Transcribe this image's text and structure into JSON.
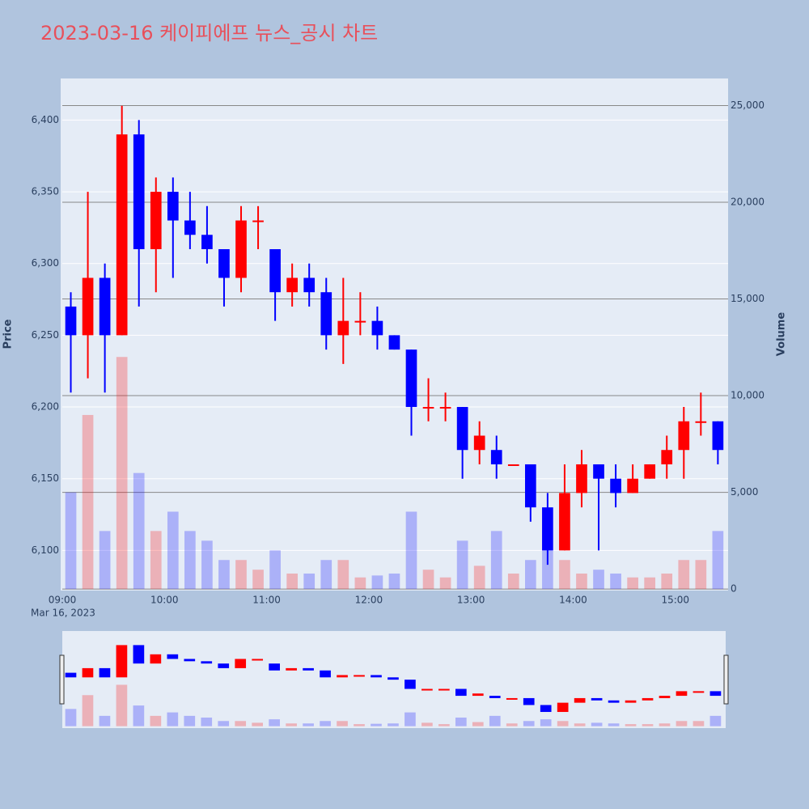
{
  "chart_data": {
    "type": "candlestick",
    "title": "2023-03-16 케이피에프 뉴스_공시 차트",
    "y_label": "Price",
    "y2_label": "Volume",
    "x_date_label": "Mar 16, 2023",
    "increasing_color": "#ff0000",
    "decreasing_color": "#0000ff",
    "x": [
      "09:00",
      "09:10",
      "09:20",
      "09:30",
      "09:40",
      "09:50",
      "10:00",
      "10:10",
      "10:20",
      "10:30",
      "10:40",
      "10:50",
      "11:00",
      "11:10",
      "11:20",
      "11:30",
      "11:40",
      "11:50",
      "12:00",
      "12:10",
      "12:20",
      "12:30",
      "12:40",
      "12:50",
      "13:00",
      "13:10",
      "13:20",
      "13:30",
      "13:40",
      "13:50",
      "14:00",
      "14:10",
      "14:20",
      "14:30",
      "14:40",
      "14:50",
      "15:00",
      "15:10",
      "15:20"
    ],
    "open": [
      6270,
      6250,
      6290,
      6250,
      6390,
      6310,
      6350,
      6330,
      6320,
      6310,
      6290,
      6330,
      6310,
      6280,
      6290,
      6280,
      6250,
      6260,
      6260,
      6250,
      6240,
      6200,
      6200,
      6200,
      6170,
      6170,
      6160,
      6160,
      6130,
      6100,
      6140,
      6160,
      6150,
      6140,
      6150,
      6160,
      6170,
      6190,
      6190
    ],
    "high": [
      6280,
      6350,
      6300,
      6410,
      6400,
      6360,
      6360,
      6350,
      6340,
      6310,
      6340,
      6340,
      6310,
      6300,
      6300,
      6290,
      6290,
      6280,
      6270,
      6250,
      6240,
      6220,
      6210,
      6200,
      6190,
      6180,
      6160,
      6160,
      6140,
      6160,
      6170,
      6160,
      6160,
      6160,
      6160,
      6180,
      6200,
      6210,
      6190
    ],
    "low": [
      6210,
      6220,
      6210,
      6250,
      6270,
      6280,
      6290,
      6310,
      6300,
      6270,
      6280,
      6310,
      6260,
      6270,
      6270,
      6240,
      6230,
      6250,
      6240,
      6240,
      6180,
      6190,
      6190,
      6150,
      6160,
      6150,
      6160,
      6120,
      6090,
      6100,
      6130,
      6100,
      6130,
      6140,
      6150,
      6150,
      6150,
      6180,
      6160
    ],
    "close": [
      6250,
      6290,
      6250,
      6390,
      6310,
      6350,
      6330,
      6320,
      6310,
      6290,
      6330,
      6330,
      6280,
      6290,
      6280,
      6250,
      6260,
      6260,
      6250,
      6240,
      6200,
      6200,
      6200,
      6170,
      6180,
      6160,
      6160,
      6130,
      6100,
      6140,
      6160,
      6150,
      6140,
      6150,
      6160,
      6170,
      6190,
      6190,
      6170
    ],
    "volume": [
      5000,
      9000,
      3000,
      12000,
      6000,
      3000,
      4000,
      3000,
      2500,
      1500,
      1500,
      1000,
      2000,
      800,
      800,
      1500,
      1500,
      600,
      700,
      800,
      4000,
      1000,
      600,
      2500,
      1200,
      3000,
      800,
      1500,
      2000,
      1500,
      800,
      1000,
      800,
      600,
      600,
      800,
      1500,
      1500,
      3000
    ],
    "xlim": [
      "09:00",
      "15:31"
    ],
    "xticks": [
      "09:00",
      "10:00",
      "11:00",
      "12:00",
      "13:00",
      "14:00",
      "15:00"
    ],
    "ylim": [
      6072,
      6429
    ],
    "yticks": [
      {
        "value": 6100,
        "label": "6,100"
      },
      {
        "value": 6150,
        "label": "6,150"
      },
      {
        "value": 6200,
        "label": "6,200"
      },
      {
        "value": 6250,
        "label": "6,250"
      },
      {
        "value": 6300,
        "label": "6,300"
      },
      {
        "value": 6350,
        "label": "6,350"
      },
      {
        "value": 6400,
        "label": "6,400"
      }
    ],
    "y2lim": [
      -80,
      26400
    ],
    "y2ticks": [
      0,
      {
        "value": 5000,
        "label": "5,000"
      },
      {
        "value": 10000,
        "label": "10,000"
      },
      {
        "value": 15000,
        "label": "15,000"
      },
      {
        "value": 20000,
        "label": "20,000"
      },
      {
        "value": 25000,
        "label": "25,000"
      }
    ]
  }
}
